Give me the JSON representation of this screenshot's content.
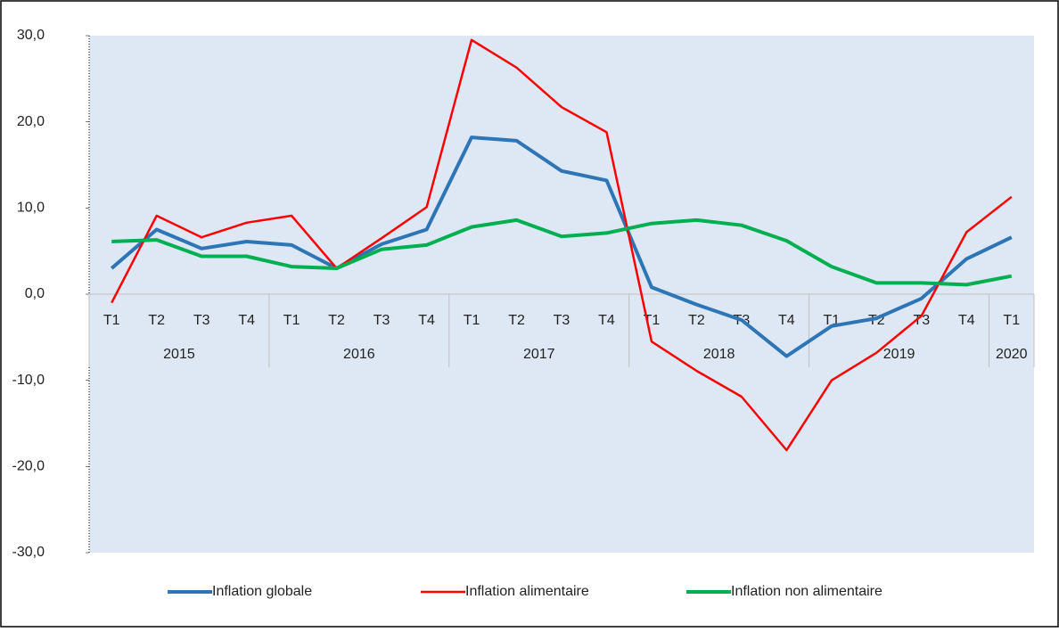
{
  "chart_data": {
    "type": "line",
    "categories": [
      "T1",
      "T2",
      "T3",
      "T4",
      "T1",
      "T2",
      "T3",
      "T4",
      "T1",
      "T2",
      "T3",
      "T4",
      "T1",
      "T2",
      "T3",
      "T4",
      "T1",
      "T2",
      "T3",
      "T4",
      "T1"
    ],
    "x_groups": [
      {
        "name": "2015",
        "count": 4
      },
      {
        "name": "2016",
        "count": 4
      },
      {
        "name": "2017",
        "count": 4
      },
      {
        "name": "2018",
        "count": 4
      },
      {
        "name": "2019",
        "count": 4
      },
      {
        "name": "2020",
        "count": 1
      }
    ],
    "series": [
      {
        "name": "Inflation globale",
        "color": "#2e75b6",
        "values": [
          3.0,
          7.5,
          5.3,
          6.1,
          5.7,
          3.0,
          5.8,
          7.5,
          18.2,
          17.8,
          14.3,
          13.2,
          0.8,
          -1.2,
          -3.0,
          -7.2,
          -3.7,
          -2.8,
          -0.5,
          4.1,
          6.6
        ]
      },
      {
        "name": "Inflation alimentaire",
        "color": "#ff0000",
        "values": [
          -1.0,
          9.1,
          6.6,
          8.3,
          9.1,
          3.0,
          6.5,
          10.1,
          29.5,
          26.3,
          21.7,
          18.8,
          -5.5,
          -8.9,
          -11.9,
          -18.1,
          -10.0,
          -6.8,
          -2.5,
          7.2,
          11.3
        ]
      },
      {
        "name": "Inflation non alimentaire",
        "color": "#00b050",
        "values": [
          6.1,
          6.3,
          4.4,
          4.4,
          3.2,
          3.0,
          5.2,
          5.7,
          7.8,
          8.6,
          6.7,
          7.1,
          8.2,
          8.6,
          8.0,
          6.2,
          3.2,
          1.3,
          1.3,
          1.1,
          2.1
        ]
      }
    ],
    "ylim": [
      -30,
      30
    ],
    "yticks": [
      {
        "value": -30,
        "label": "-30,0"
      },
      {
        "value": -20,
        "label": "-20,0"
      },
      {
        "value": -10,
        "label": "-10,0"
      },
      {
        "value": 0,
        "label": "0,0"
      },
      {
        "value": 10,
        "label": "10,0"
      },
      {
        "value": 20,
        "label": "20,0"
      },
      {
        "value": 30,
        "label": "30,0"
      }
    ],
    "grid": false,
    "legend": "bottom"
  }
}
